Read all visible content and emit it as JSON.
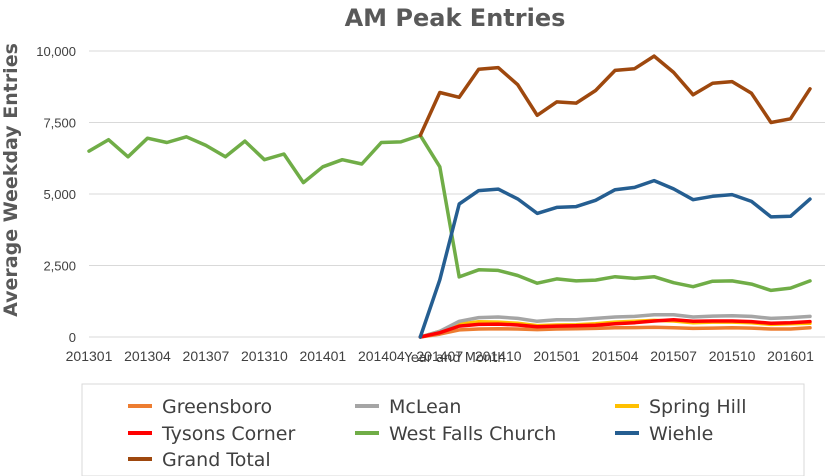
{
  "chart_data": {
    "type": "line",
    "title": "AM Peak Entries",
    "xlabel": "Year and Month",
    "ylabel": "Average Weekday Entries",
    "ylim": [
      0,
      10000
    ],
    "yticks": [
      0,
      2500,
      5000,
      7500,
      10000
    ],
    "ytick_labels": [
      "0",
      "2,500",
      "5,000",
      "7,500",
      "10,000"
    ],
    "x": [
      "201301",
      "201302",
      "201303",
      "201304",
      "201305",
      "201306",
      "201307",
      "201308",
      "201309",
      "201310",
      "201311",
      "201312",
      "201401",
      "201402",
      "201403",
      "201404",
      "201405",
      "201406",
      "201407",
      "201408",
      "201409",
      "201410",
      "201411",
      "201412",
      "201501",
      "201502",
      "201503",
      "201504",
      "201505",
      "201506",
      "201507",
      "201508",
      "201509",
      "201510",
      "201511",
      "201512",
      "201601",
      "201602"
    ],
    "xtick_labels": [
      "201301",
      "201304",
      "201307",
      "201310",
      "201401",
      "201404",
      "201407",
      "201410",
      "201501",
      "201504",
      "201507",
      "201510",
      "201601"
    ],
    "legend_position": "bottom",
    "series": [
      {
        "name": "Greensboro",
        "color": "#ED7D31",
        "values": [
          null,
          null,
          null,
          null,
          null,
          null,
          null,
          null,
          null,
          null,
          null,
          null,
          null,
          null,
          null,
          null,
          null,
          0,
          100,
          250,
          280,
          290,
          280,
          260,
          280,
          290,
          300,
          320,
          330,
          340,
          320,
          300,
          310,
          320,
          310,
          280,
          280,
          320
        ]
      },
      {
        "name": "McLean",
        "color": "#A5A5A5",
        "values": [
          null,
          null,
          null,
          null,
          null,
          null,
          null,
          null,
          null,
          null,
          null,
          null,
          null,
          null,
          null,
          null,
          null,
          0,
          200,
          550,
          680,
          700,
          650,
          550,
          600,
          600,
          650,
          700,
          720,
          780,
          780,
          700,
          730,
          740,
          720,
          650,
          680,
          720
        ]
      },
      {
        "name": "Spring Hill",
        "color": "#FFC000",
        "values": [
          null,
          null,
          null,
          null,
          null,
          null,
          null,
          null,
          null,
          null,
          null,
          null,
          null,
          null,
          null,
          null,
          null,
          0,
          200,
          450,
          530,
          520,
          480,
          400,
          420,
          430,
          460,
          520,
          550,
          580,
          560,
          500,
          520,
          520,
          500,
          440,
          460,
          480
        ]
      },
      {
        "name": "Tysons Corner",
        "color": "#FF0000",
        "values": [
          null,
          null,
          null,
          null,
          null,
          null,
          null,
          null,
          null,
          null,
          null,
          null,
          null,
          null,
          null,
          null,
          null,
          0,
          150,
          380,
          440,
          450,
          420,
          360,
          380,
          390,
          410,
          460,
          500,
          560,
          600,
          550,
          560,
          560,
          540,
          480,
          500,
          540
        ]
      },
      {
        "name": "West Falls Church",
        "color": "#70AD47",
        "values": [
          6500,
          6900,
          6300,
          6950,
          6800,
          7000,
          6700,
          6300,
          6850,
          6200,
          6400,
          5400,
          5950,
          6200,
          6050,
          6800,
          6820,
          7050,
          5950,
          2100,
          2350,
          2330,
          2150,
          1880,
          2030,
          1960,
          1990,
          2110,
          2050,
          2110,
          1900,
          1760,
          1950,
          1960,
          1850,
          1630,
          1710,
          1960
        ]
      },
      {
        "name": "Wiehle",
        "color": "#255E91",
        "values": [
          null,
          null,
          null,
          null,
          null,
          null,
          null,
          null,
          null,
          null,
          null,
          null,
          null,
          null,
          null,
          null,
          null,
          0,
          2000,
          4650,
          5120,
          5170,
          4830,
          4320,
          4530,
          4560,
          4780,
          5150,
          5230,
          5470,
          5180,
          4800,
          4920,
          4980,
          4740,
          4200,
          4220,
          4820
        ]
      },
      {
        "name": "Grand Total",
        "color": "#9E480E",
        "values": [
          null,
          null,
          null,
          null,
          null,
          null,
          null,
          null,
          null,
          null,
          null,
          null,
          null,
          null,
          null,
          null,
          null,
          7050,
          8550,
          8380,
          9360,
          9420,
          8820,
          7750,
          8220,
          8180,
          8620,
          9320,
          9380,
          9820,
          9250,
          8470,
          8870,
          8930,
          8520,
          7500,
          7630,
          8680
        ]
      }
    ]
  }
}
